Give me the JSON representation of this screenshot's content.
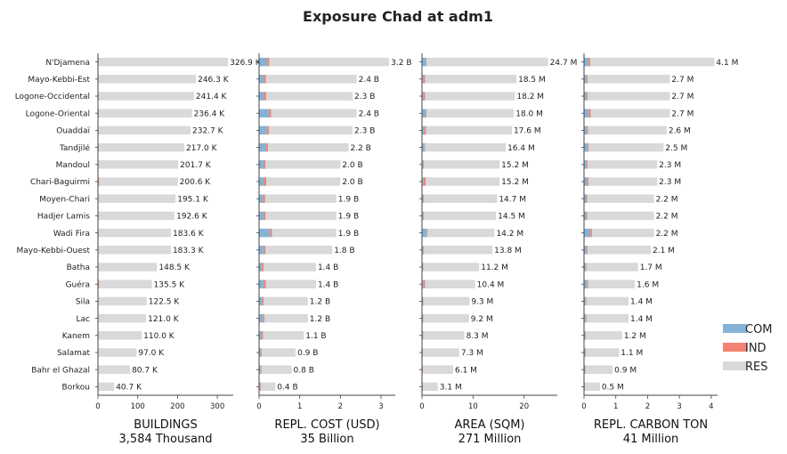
{
  "title": "Exposure Chad at adm1",
  "colors": {
    "COM": "#86b3d4",
    "IND": "#f28372",
    "RES": "#d9d9d9"
  },
  "legend": [
    "COM",
    "IND",
    "RES"
  ],
  "chart_data": {
    "type": "bar",
    "orientation": "horizontal",
    "stacked": true,
    "legend_position": "right",
    "categories": [
      "N'Djamena",
      "Mayo-Kebbi-Est",
      "Logone-Occidental",
      "Logone-Oriental",
      "Ouaddaï",
      "Tandjilé",
      "Mandoul",
      "Chari-Baguirmi",
      "Moyen-Chari",
      "Hadjer Lamis",
      "Wadi Fira",
      "Mayo-Kebbi-Ouest",
      "Batha",
      "Guéra",
      "Sila",
      "Lac",
      "Kanem",
      "Salamat",
      "Bahr el Ghazal",
      "Borkou"
    ],
    "panels": [
      {
        "name": "buildings",
        "xlabel": "BUILDINGS",
        "total": "3,584 Thousand",
        "xlim": [
          0,
          340
        ],
        "ticks": [
          0,
          100,
          200,
          300
        ],
        "totals": [
          326.9,
          246.3,
          241.4,
          236.4,
          232.7,
          217.0,
          201.7,
          200.6,
          195.1,
          192.6,
          183.6,
          183.3,
          148.5,
          135.5,
          122.5,
          121.0,
          110.0,
          97.0,
          80.7,
          40.7
        ],
        "labels": [
          "326.9 K",
          "246.3 K",
          "241.4 K",
          "236.4 K",
          "232.7 K",
          "217.0 K",
          "201.7 K",
          "200.6 K",
          "195.1 K",
          "192.6 K",
          "183.6 K",
          "183.3 K",
          "148.5 K",
          "135.5 K",
          "122.5 K",
          "121.0 K",
          "110.0 K",
          "97.0 K",
          "80.7 K",
          "40.7 K"
        ],
        "com": [
          1.5,
          1,
          1,
          1.5,
          1,
          1,
          0.8,
          1,
          0.8,
          0.8,
          1,
          0.8,
          0.6,
          0.8,
          0.6,
          0.6,
          0.5,
          0.4,
          0.4,
          0.3
        ],
        "ind": [
          0.5,
          0.5,
          0.5,
          0.8,
          0.5,
          0.5,
          0.5,
          2,
          0.5,
          0.5,
          0.5,
          0.5,
          0.4,
          2,
          0.4,
          0.4,
          0.4,
          0.3,
          0.3,
          0.2
        ]
      },
      {
        "name": "replacement-cost",
        "xlabel": "REPL. COST (USD)",
        "total": "35 Billion",
        "xlim": [
          0,
          3.35
        ],
        "ticks": [
          0,
          1,
          2,
          3
        ],
        "totals": [
          3.2,
          2.4,
          2.3,
          2.4,
          2.3,
          2.2,
          2.0,
          2.0,
          1.9,
          1.9,
          1.9,
          1.8,
          1.4,
          1.4,
          1.2,
          1.2,
          1.1,
          0.9,
          0.8,
          0.4
        ],
        "labels": [
          "3.2 B",
          "2.4 B",
          "2.3 B",
          "2.4 B",
          "2.3 B",
          "2.2 B",
          "2.0 B",
          "2.0 B",
          "1.9 B",
          "1.9 B",
          "1.9 B",
          "1.8 B",
          "1.4 B",
          "1.4 B",
          "1.2 B",
          "1.2 B",
          "1.1 B",
          "0.9 B",
          "0.8 B",
          "0.4 B"
        ],
        "com": [
          0.2,
          0.12,
          0.12,
          0.25,
          0.2,
          0.18,
          0.12,
          0.12,
          0.1,
          0.12,
          0.28,
          0.12,
          0.07,
          0.12,
          0.08,
          0.1,
          0.07,
          0.05,
          0.04,
          0.02
        ],
        "ind": [
          0.05,
          0.05,
          0.06,
          0.05,
          0.04,
          0.04,
          0.04,
          0.06,
          0.05,
          0.04,
          0.04,
          0.04,
          0.04,
          0.05,
          0.03,
          0.03,
          0.03,
          0.02,
          0.02,
          0.02
        ]
      },
      {
        "name": "area",
        "xlabel": "AREA (SQM)",
        "total": "271 Million",
        "xlim": [
          0,
          26.5
        ],
        "ticks": [
          0,
          10,
          20
        ],
        "totals": [
          24.7,
          18.5,
          18.2,
          18.0,
          17.6,
          16.4,
          15.2,
          15.2,
          14.7,
          14.5,
          14.2,
          13.8,
          11.2,
          10.4,
          9.3,
          9.2,
          8.3,
          7.3,
          6.1,
          3.1
        ],
        "labels": [
          "24.7 M",
          "18.5 M",
          "18.2 M",
          "18.0 M",
          "17.6 M",
          "16.4 M",
          "15.2 M",
          "15.2 M",
          "14.7 M",
          "14.5 M",
          "14.2 M",
          "13.8 M",
          "11.2 M",
          "10.4 M",
          "9.3 M",
          "9.2 M",
          "8.3 M",
          "7.3 M",
          "6.1 M",
          "3.1 M"
        ],
        "com": [
          0.8,
          0.3,
          0.3,
          0.8,
          0.5,
          0.5,
          0.3,
          0.3,
          0.3,
          0.3,
          1.0,
          0.3,
          0.2,
          0.3,
          0.2,
          0.2,
          0.2,
          0.1,
          0.1,
          0.1
        ],
        "ind": [
          0.1,
          0.3,
          0.3,
          0.1,
          0.3,
          0.1,
          0.1,
          0.4,
          0.1,
          0.1,
          0.1,
          0.1,
          0.1,
          0.3,
          0.1,
          0.1,
          0.1,
          0.1,
          0.1,
          0.05
        ]
      },
      {
        "name": "replacement-carbon",
        "xlabel": "REPL. CARBON TON",
        "total": "41 Million",
        "xlim": [
          0,
          4.2
        ],
        "ticks": [
          0,
          1,
          2,
          3,
          4
        ],
        "totals": [
          4.1,
          2.7,
          2.7,
          2.7,
          2.6,
          2.5,
          2.3,
          2.3,
          2.2,
          2.2,
          2.2,
          2.1,
          1.7,
          1.6,
          1.4,
          1.4,
          1.2,
          1.1,
          0.9,
          0.5
        ],
        "labels": [
          "4.1 M",
          "2.7 M",
          "2.7 M",
          "2.7 M",
          "2.6 M",
          "2.5 M",
          "2.3 M",
          "2.3 M",
          "2.2 M",
          "2.2 M",
          "2.2 M",
          "2.1 M",
          "1.7 M",
          "1.6 M",
          "1.4 M",
          "1.4 M",
          "1.2 M",
          "1.1 M",
          "0.9 M",
          "0.5 M"
        ],
        "com": [
          0.15,
          0.08,
          0.08,
          0.15,
          0.1,
          0.12,
          0.08,
          0.1,
          0.07,
          0.07,
          0.2,
          0.08,
          0.05,
          0.1,
          0.05,
          0.05,
          0.04,
          0.04,
          0.03,
          0.02
        ],
        "ind": [
          0.05,
          0.03,
          0.03,
          0.06,
          0.03,
          0.03,
          0.03,
          0.04,
          0.03,
          0.03,
          0.05,
          0.03,
          0.02,
          0.03,
          0.02,
          0.03,
          0.02,
          0.02,
          0.02,
          0.01
        ]
      }
    ]
  }
}
